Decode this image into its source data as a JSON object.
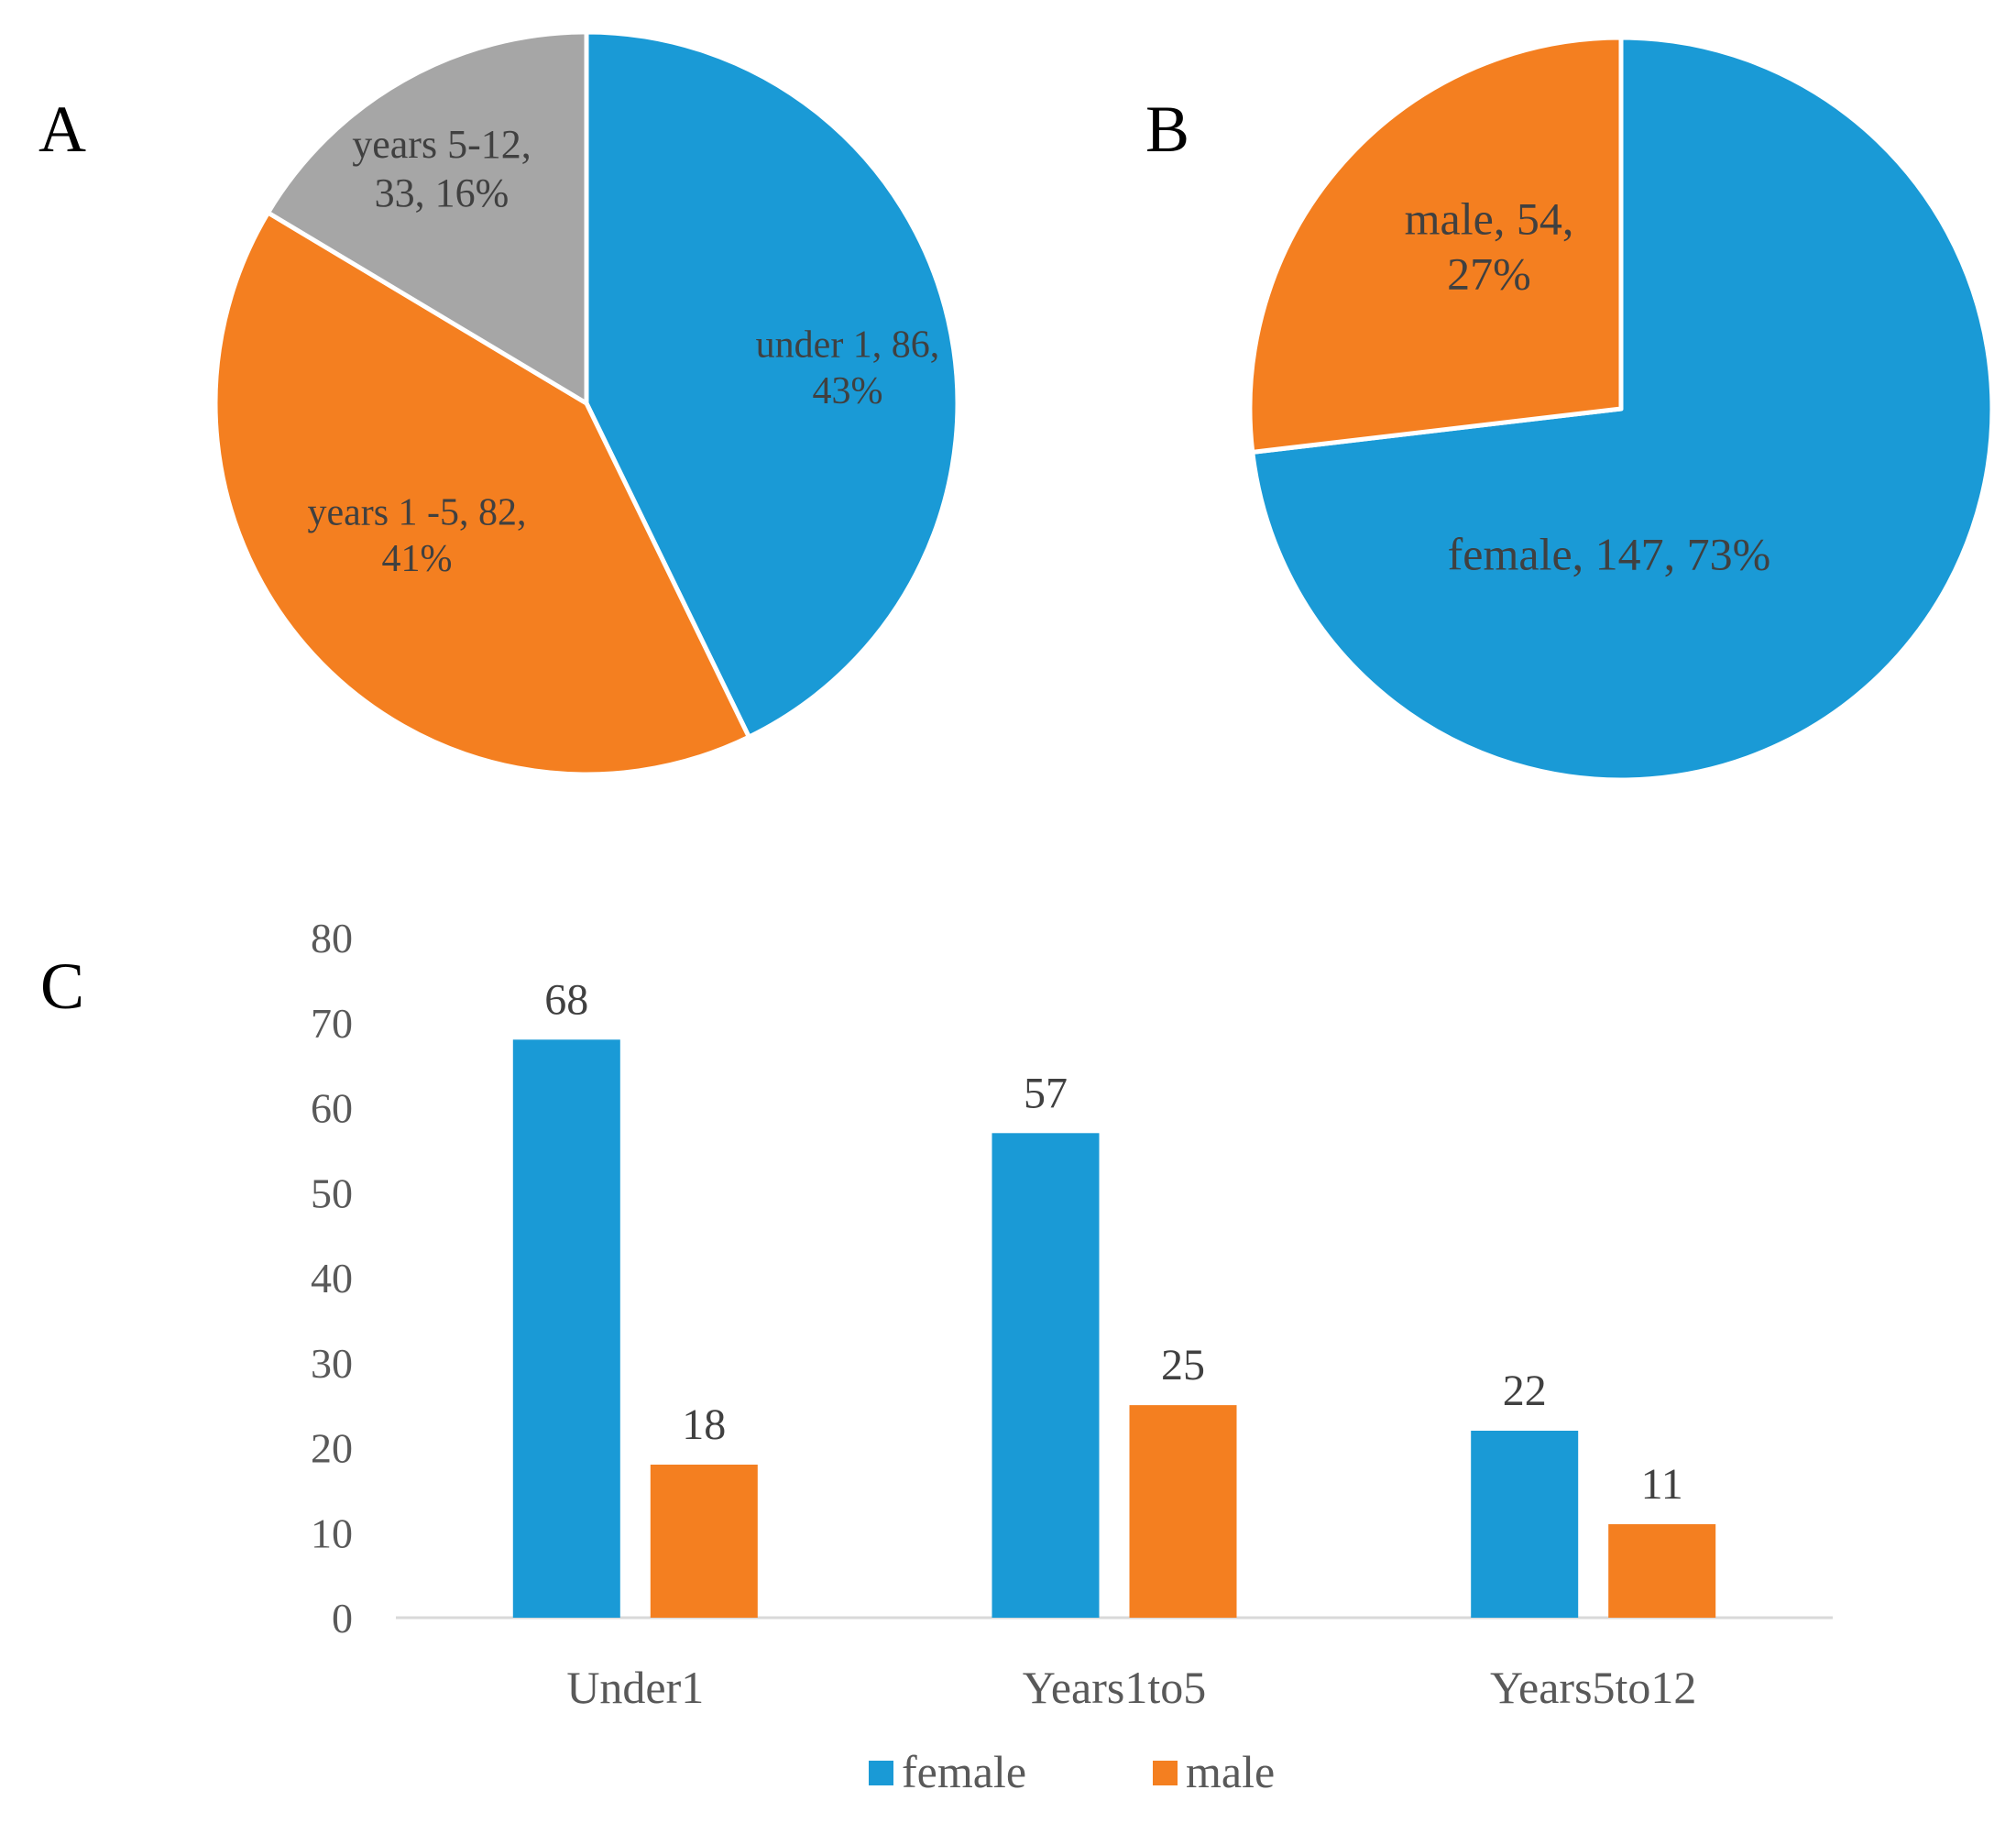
{
  "colors": {
    "blue": "#1a9ad6",
    "orange": "#f47f20",
    "gray": "#a6a6a6",
    "axis": "#d9d9d9"
  },
  "chart_data": [
    {
      "id": "A",
      "type": "pie",
      "panel_label": "A",
      "slices": [
        {
          "name": "under 1",
          "value": 86,
          "percent": 43,
          "label_lines": [
            "under 1, 86,",
            "43%"
          ],
          "color": "#1a9ad6"
        },
        {
          "name": "years 1 -5",
          "value": 82,
          "percent": 41,
          "label_lines": [
            "years 1 -5, 82,",
            "41%"
          ],
          "color": "#f47f20"
        },
        {
          "name": "years 5-12",
          "value": 33,
          "percent": 16,
          "label_lines": [
            "years 5-12,",
            "33, 16%"
          ],
          "color": "#a6a6a6"
        }
      ]
    },
    {
      "id": "B",
      "type": "pie",
      "panel_label": "B",
      "slices": [
        {
          "name": "female",
          "value": 147,
          "percent": 73,
          "label_lines": [
            "female, 147, 73%"
          ],
          "color": "#1a9ad6"
        },
        {
          "name": "male",
          "value": 54,
          "percent": 27,
          "label_lines": [
            "male, 54,",
            "27%"
          ],
          "color": "#f47f20"
        }
      ]
    },
    {
      "id": "C",
      "type": "bar",
      "panel_label": "C",
      "categories": [
        "Under1",
        "Years1to5",
        "Years5to12"
      ],
      "series": [
        {
          "name": "female",
          "values": [
            68,
            57,
            22
          ],
          "color": "#1a9ad6"
        },
        {
          "name": "male",
          "values": [
            18,
            25,
            11
          ],
          "color": "#f47f20"
        }
      ],
      "yticks": [
        "0",
        "10",
        "20",
        "30",
        "40",
        "50",
        "60",
        "70",
        "80"
      ],
      "ylim": [
        0,
        80
      ],
      "legend": [
        "female",
        "male"
      ],
      "legend_position": "bottom-center",
      "grid": false
    }
  ]
}
